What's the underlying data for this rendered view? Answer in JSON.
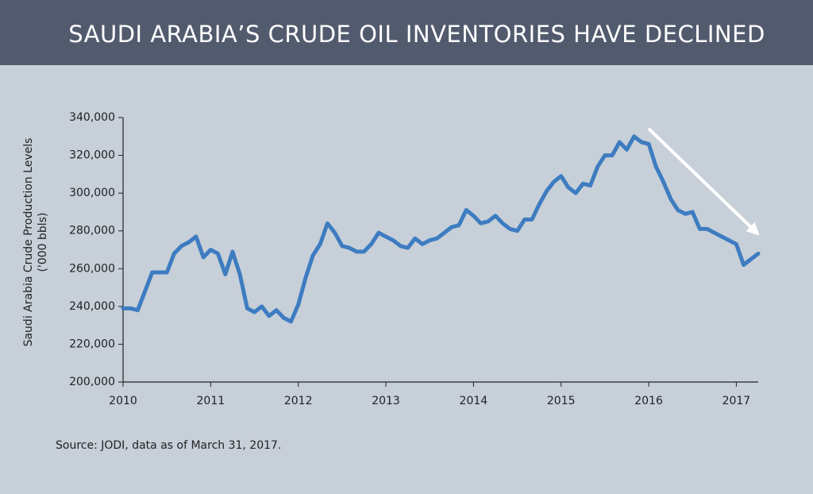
{
  "chart_data": {
    "type": "line",
    "title": "SAUDI ARABIA’S CRUDE OIL INVENTORIES HAVE DECLINED",
    "ylabel": [
      "Saudi Arabia Crude Production Levels",
      "('000 bbls)"
    ],
    "source": "Source: JODI, data as of March 31, 2017.",
    "x": [
      2010,
      2010.083,
      2010.167,
      2010.25,
      2010.333,
      2010.417,
      2010.5,
      2010.583,
      2010.667,
      2010.75,
      2010.833,
      2010.917,
      2011,
      2011.083,
      2011.167,
      2011.25,
      2011.333,
      2011.417,
      2011.5,
      2011.583,
      2011.667,
      2011.75,
      2011.833,
      2011.917,
      2012,
      2012.083,
      2012.167,
      2012.25,
      2012.333,
      2012.417,
      2012.5,
      2012.583,
      2012.667,
      2012.75,
      2012.833,
      2012.917,
      2013,
      2013.083,
      2013.167,
      2013.25,
      2013.333,
      2013.417,
      2013.5,
      2013.583,
      2013.667,
      2013.75,
      2013.833,
      2013.917,
      2014,
      2014.083,
      2014.167,
      2014.25,
      2014.333,
      2014.417,
      2014.5,
      2014.583,
      2014.667,
      2014.75,
      2014.833,
      2014.917,
      2015,
      2015.083,
      2015.167,
      2015.25,
      2015.333,
      2015.417,
      2015.5,
      2015.583,
      2015.667,
      2015.75,
      2015.833,
      2015.917,
      2016,
      2016.083,
      2016.167,
      2016.25,
      2016.333,
      2016.417,
      2016.5,
      2016.583,
      2016.667,
      2016.75,
      2016.833,
      2016.917,
      2017,
      2017.083,
      2017.167,
      2017.25
    ],
    "series": [
      {
        "color": "#3d7cc0",
        "values": [
          239000,
          239000,
          238000,
          248000,
          258000,
          258000,
          258000,
          268000,
          272000,
          274000,
          277000,
          266000,
          270000,
          268000,
          257000,
          269000,
          257000,
          239000,
          237000,
          240000,
          235000,
          238000,
          234000,
          232000,
          241000,
          255000,
          267000,
          273000,
          284000,
          279000,
          272000,
          271000,
          269000,
          269000,
          273000,
          279000,
          277000,
          275000,
          272000,
          271000,
          276000,
          273000,
          275000,
          276000,
          279000,
          282000,
          283000,
          291000,
          288000,
          284000,
          285000,
          288000,
          284000,
          281000,
          280000,
          286000,
          286000,
          294000,
          301000,
          306000,
          309000,
          303000,
          300000,
          305000,
          304000,
          314000,
          320000,
          320000,
          327000,
          323000,
          330000,
          327000,
          326000,
          314000,
          306000,
          297000,
          291000,
          289000,
          290000,
          281000,
          281000,
          279000,
          277000,
          275000,
          273000,
          262000,
          265000,
          268000
        ]
      }
    ],
    "xlim": [
      2010,
      2017.25
    ],
    "xticks": [
      2010,
      2011,
      2012,
      2013,
      2014,
      2015,
      2016,
      2017
    ],
    "ylim": [
      200000,
      340000
    ],
    "yticks": [
      {
        "value": 200000,
        "label": "200,000"
      },
      {
        "value": 220000,
        "label": "220,000"
      },
      {
        "value": 240000,
        "label": "240,000"
      },
      {
        "value": 260000,
        "label": "260,000"
      },
      {
        "value": 280000,
        "label": "280,000"
      },
      {
        "value": 300000,
        "label": "300,000"
      },
      {
        "value": 320000,
        "label": "320,000"
      },
      {
        "value": 340000,
        "label": "340,000"
      }
    ]
  }
}
